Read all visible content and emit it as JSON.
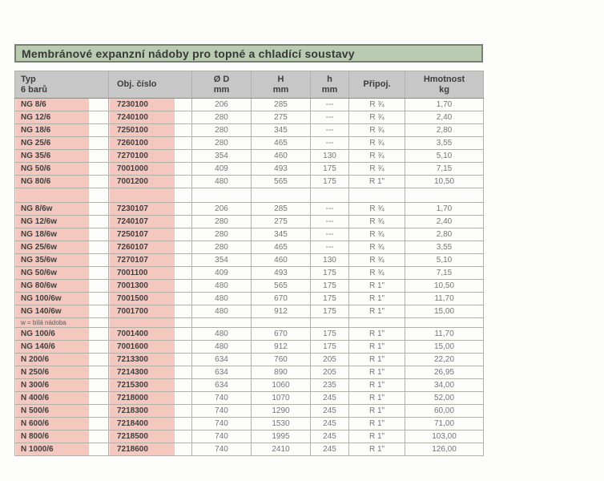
{
  "page": {
    "title": "Membránové expanzní nádoby pro topné a chladící soustavy"
  },
  "colors": {
    "title_bg": "#b9ccb1",
    "title_border": "#76826f",
    "header_bg": "#c7c7c7",
    "highlight_pink": "#f4c7bf"
  },
  "table": {
    "columns": [
      {
        "line1": "Typ",
        "line2": "6 barů"
      },
      {
        "line1": "Obj. číslo",
        "line2": ""
      },
      {
        "line1": "Ø D",
        "line2": "mm"
      },
      {
        "line1": "H",
        "line2": "mm"
      },
      {
        "line1": "h",
        "line2": "mm"
      },
      {
        "line1": "Připoj.",
        "line2": ""
      },
      {
        "line1": "Hmotnost",
        "line2": "kg"
      }
    ],
    "rows": [
      {
        "cells": [
          "NG 8/6",
          "7230100",
          "206",
          "285",
          "---",
          "R ¾",
          "1,70"
        ]
      },
      {
        "cells": [
          "NG 12/6",
          "7240100",
          "280",
          "275",
          "---",
          "R ¾",
          "2,40"
        ]
      },
      {
        "cells": [
          "NG 18/6",
          "7250100",
          "280",
          "345",
          "---",
          "R ¾",
          "2,80"
        ]
      },
      {
        "cells": [
          "NG 25/6",
          "7260100",
          "280",
          "465",
          "---",
          "R ¾",
          "3,55"
        ]
      },
      {
        "cells": [
          "NG 35/6",
          "7270100",
          "354",
          "460",
          "130",
          "R ¾",
          "5,10"
        ]
      },
      {
        "cells": [
          "NG 50/6",
          "7001000",
          "409",
          "493",
          "175",
          "R ¾",
          "7,15"
        ]
      },
      {
        "cells": [
          "NG 80/6",
          "7001200",
          "480",
          "565",
          "175",
          "R 1\"",
          "10,50"
        ]
      },
      {
        "type": "spacer"
      },
      {
        "cells": [
          "NG 8/6w",
          "7230107",
          "206",
          "285",
          "---",
          "R ¾",
          "1,70"
        ]
      },
      {
        "cells": [
          "NG 12/6w",
          "7240107",
          "280",
          "275",
          "---",
          "R ¾",
          "2,40"
        ]
      },
      {
        "cells": [
          "NG 18/6w",
          "7250107",
          "280",
          "345",
          "---",
          "R ¾",
          "2,80"
        ]
      },
      {
        "cells": [
          "NG 25/6w",
          "7260107",
          "280",
          "465",
          "---",
          "R ¾",
          "3,55"
        ]
      },
      {
        "cells": [
          "NG 35/6w",
          "7270107",
          "354",
          "460",
          "130",
          "R ¾",
          "5,10"
        ]
      },
      {
        "cells": [
          "NG 50/6w",
          "7001100",
          "409",
          "493",
          "175",
          "R ¾",
          "7,15"
        ]
      },
      {
        "cells": [
          "NG 80/6w",
          "7001300",
          "480",
          "565",
          "175",
          "R 1\"",
          "10,50"
        ]
      },
      {
        "cells": [
          "NG 100/6w",
          "7001500",
          "480",
          "670",
          "175",
          "R 1\"",
          "11,70"
        ]
      },
      {
        "cells": [
          "NG 140/6w",
          "7001700",
          "480",
          "912",
          "175",
          "R 1\"",
          "15,00"
        ]
      },
      {
        "type": "note",
        "text": "w = bílá nádoba"
      },
      {
        "cells": [
          "NG 100/6",
          "7001400",
          "480",
          "670",
          "175",
          "R 1\"",
          "11,70"
        ]
      },
      {
        "cells": [
          "NG 140/6",
          "7001600",
          "480",
          "912",
          "175",
          "R 1\"",
          "15,00"
        ]
      },
      {
        "cells": [
          "N 200/6",
          "7213300",
          "634",
          "760",
          "205",
          "R 1\"",
          "22,20"
        ]
      },
      {
        "cells": [
          "N 250/6",
          "7214300",
          "634",
          "890",
          "205",
          "R 1\"",
          "26,95"
        ]
      },
      {
        "cells": [
          "N 300/6",
          "7215300",
          "634",
          "1060",
          "235",
          "R 1\"",
          "34,00"
        ]
      },
      {
        "cells": [
          "N 400/6",
          "7218000",
          "740",
          "1070",
          "245",
          "R 1\"",
          "52,00"
        ]
      },
      {
        "cells": [
          "N 500/6",
          "7218300",
          "740",
          "1290",
          "245",
          "R 1\"",
          "60,00"
        ]
      },
      {
        "cells": [
          "N 600/6",
          "7218400",
          "740",
          "1530",
          "245",
          "R 1\"",
          "71,00"
        ]
      },
      {
        "cells": [
          "N 800/6",
          "7218500",
          "740",
          "1995",
          "245",
          "R 1\"",
          "103,00"
        ]
      },
      {
        "cells": [
          "N 1000/6",
          "7218600",
          "740",
          "2410",
          "245",
          "R 1\"",
          "126,00"
        ]
      }
    ]
  }
}
